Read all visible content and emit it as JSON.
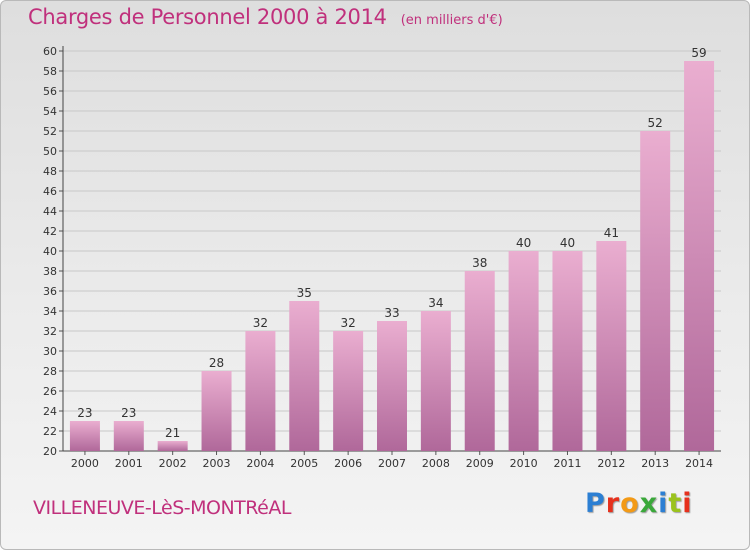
{
  "header": {
    "title": "Charges de Personnel 2000 à 2014",
    "subtitle": "(en milliers d'€)"
  },
  "footer": {
    "commune": "VILLENEUVE-LèS-MONTRéAL",
    "brand": "Proxiti"
  },
  "colors": {
    "accent": "#c0307c",
    "bar_top": "#eaaed0",
    "bar_bottom": "#b0689a",
    "grid": "#c8c8c8"
  },
  "chart_data": {
    "type": "bar",
    "title": "Charges de Personnel 2000 à 2014",
    "subtitle": "(en milliers d'€)",
    "categories": [
      "2000",
      "2001",
      "2002",
      "2003",
      "2004",
      "2005",
      "2006",
      "2007",
      "2008",
      "2009",
      "2010",
      "2011",
      "2012",
      "2013",
      "2014"
    ],
    "values": [
      23,
      23,
      21,
      28,
      32,
      35,
      32,
      33,
      34,
      38,
      40,
      40,
      41,
      52,
      59
    ],
    "ylim": [
      20,
      60
    ],
    "ytick_step": 2,
    "grid": true,
    "xlabel": "",
    "ylabel": ""
  }
}
